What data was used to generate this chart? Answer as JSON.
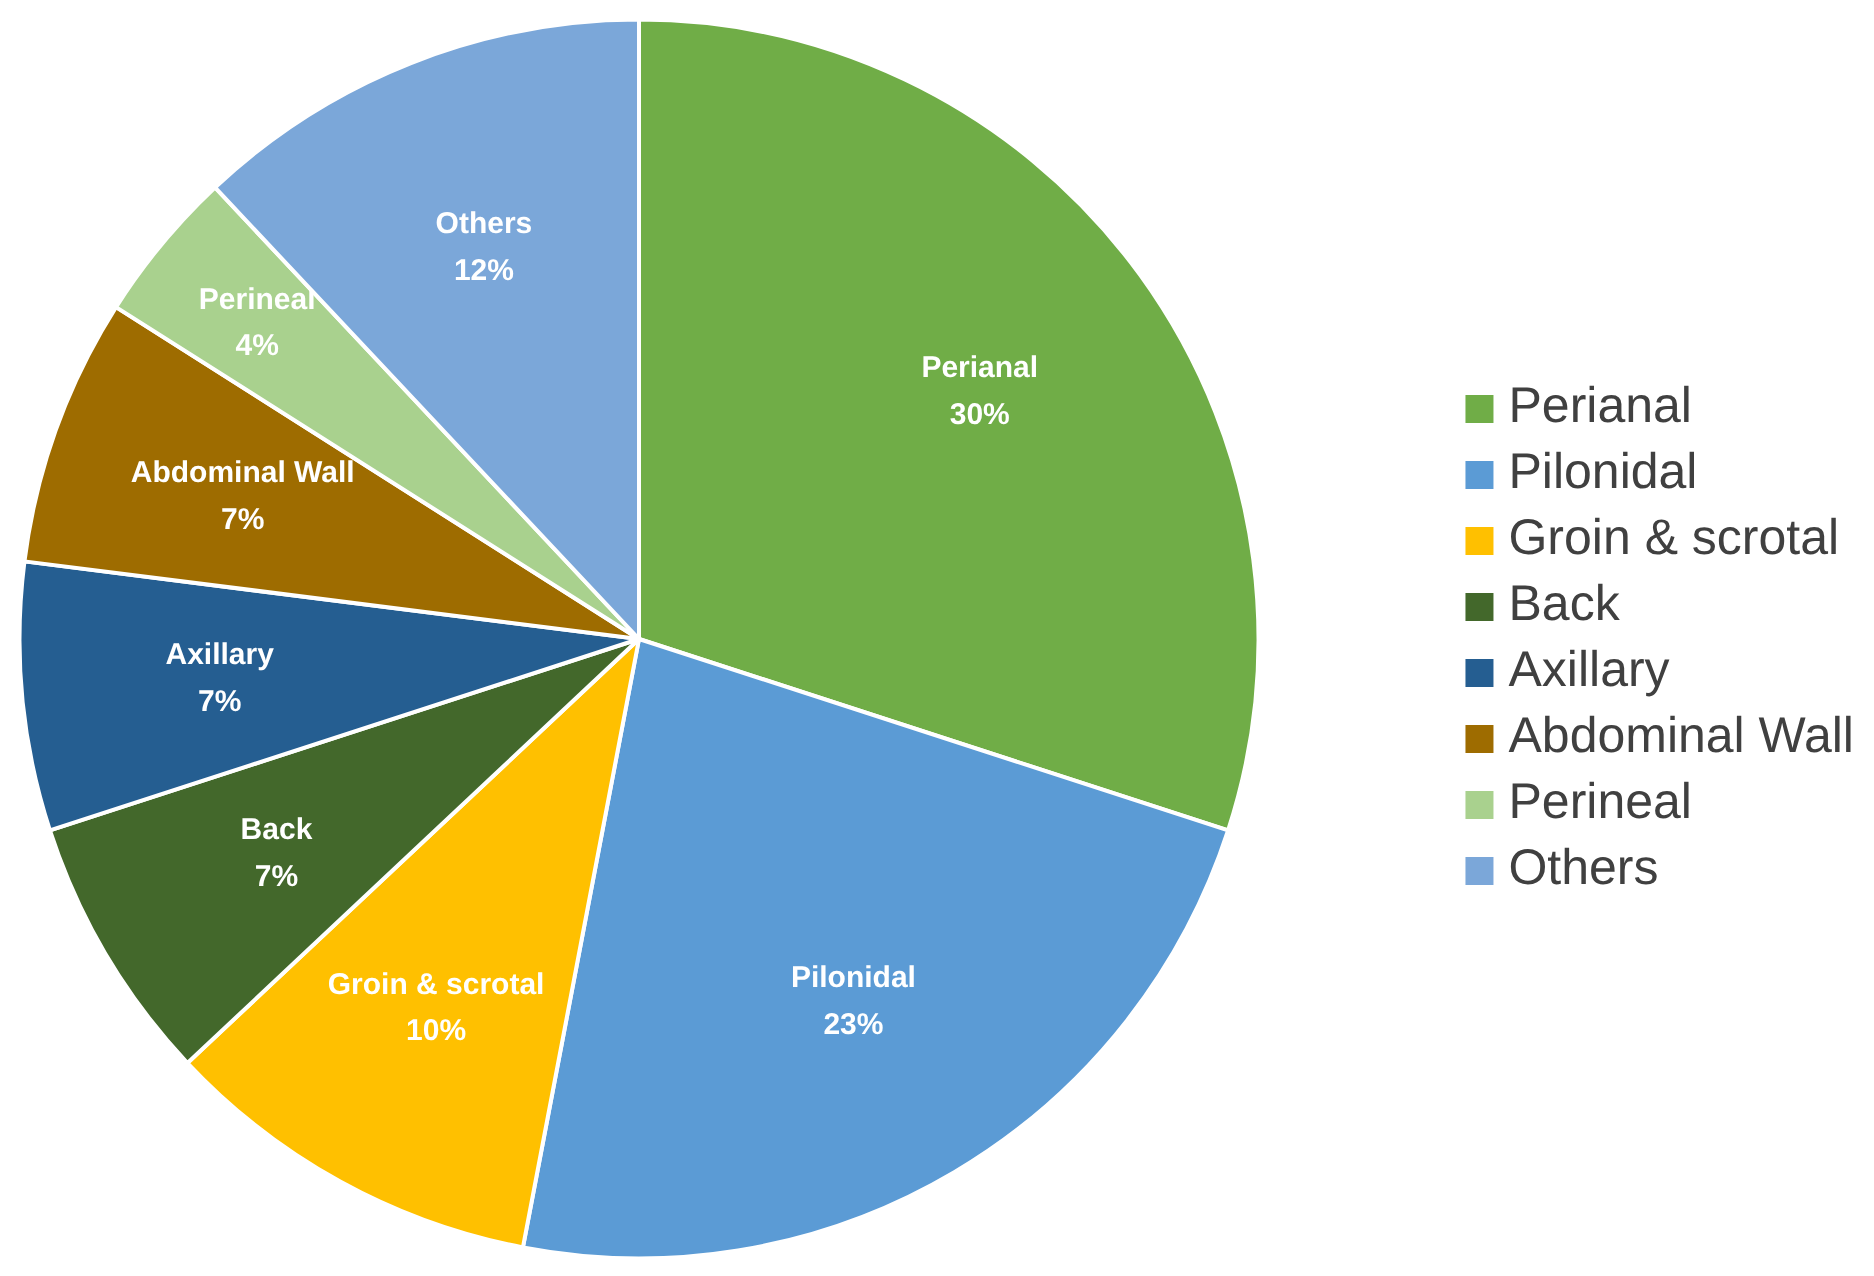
{
  "chart_data": {
    "type": "pie",
    "categories": [
      "Perianal",
      "Pilonidal",
      "Groin & scrotal",
      "Back",
      "Axillary",
      "Abdominal Wall",
      "Perineal",
      "Others"
    ],
    "values": [
      30,
      23,
      10,
      7,
      7,
      7,
      4,
      12
    ],
    "value_labels": [
      "30%",
      "23%",
      "10%",
      "7%",
      "7%",
      "7%",
      "4%",
      "12%"
    ],
    "colors": [
      "#70ad47",
      "#5b9bd5",
      "#ffc000",
      "#43682b",
      "#255e91",
      "#9e6c00",
      "#a9d18e",
      "#7ba7d9"
    ],
    "legend": "right"
  }
}
